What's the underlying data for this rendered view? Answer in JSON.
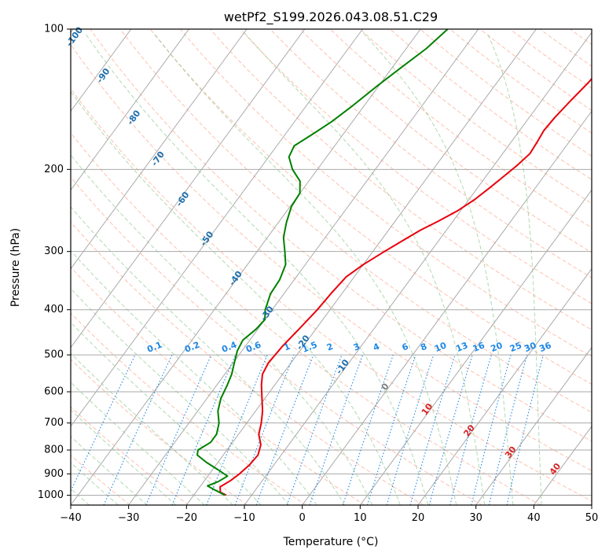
{
  "chart_data": {
    "type": "line",
    "subtype": "skew-T log-P diagram",
    "title": "wetPf2_S199.2026.043.08.51.C29",
    "xlabel": "Temperature (°C)",
    "ylabel": "Pressure (hPa)",
    "xlim": [
      -40,
      50
    ],
    "ylim": [
      1050,
      100
    ],
    "x_ticks": [
      -40,
      -30,
      -20,
      -10,
      0,
      10,
      20,
      30,
      40,
      50
    ],
    "x_tick_labels": [
      "−40",
      "−30",
      "−20",
      "−10",
      "0",
      "10",
      "20",
      "30",
      "40",
      "50"
    ],
    "y_ticks": [
      1000,
      900,
      800,
      700,
      600,
      500,
      400,
      300,
      200,
      100
    ],
    "y_tick_labels": [
      "1000",
      "900",
      "800",
      "700",
      "600",
      "500",
      "400",
      "300",
      "200",
      "100"
    ],
    "colors": {
      "temperature": "#e8000b",
      "dewpoint": "#008000",
      "isotherm": "#aaaaaa",
      "dry_adiabat": "#ff8c69",
      "moist_adiabat": "#7cbf7c",
      "mixing_ratio": "#1e88e5",
      "upper_isotherm_labels": "#1f6fad",
      "lower_isotherm_labels": "#d62728",
      "zero_label": "#808080"
    },
    "series": [
      {
        "name": "Temperature",
        "points": [
          [
            -14.4,
            1000
          ],
          [
            -15.8,
            985
          ],
          [
            -16.5,
            960
          ],
          [
            -15.5,
            930
          ],
          [
            -14.8,
            900
          ],
          [
            -14.2,
            860
          ],
          [
            -14.0,
            820
          ],
          [
            -14.8,
            780
          ],
          [
            -16.5,
            740
          ],
          [
            -17.5,
            700
          ],
          [
            -18.8,
            660
          ],
          [
            -20.5,
            620
          ],
          [
            -22.3,
            580
          ],
          [
            -23.5,
            550
          ],
          [
            -23.9,
            520
          ],
          [
            -23.6,
            480
          ],
          [
            -22.9,
            440
          ],
          [
            -22.2,
            400
          ],
          [
            -21.9,
            370
          ],
          [
            -21.4,
            340
          ],
          [
            -20.0,
            320
          ],
          [
            -18.0,
            300
          ],
          [
            -16.3,
            285
          ],
          [
            -14.5,
            270
          ],
          [
            -12.5,
            258
          ],
          [
            -10.5,
            245
          ],
          [
            -9.0,
            232
          ],
          [
            -8.0,
            220
          ],
          [
            -7.0,
            208
          ],
          [
            -6.0,
            196
          ],
          [
            -5.3,
            185
          ],
          [
            -5.5,
            175
          ],
          [
            -5.8,
            165
          ],
          [
            -5.6,
            155
          ],
          [
            -5.0,
            143
          ],
          [
            -4.2,
            130
          ],
          [
            -3.8,
            118
          ],
          [
            -3.3,
            108
          ],
          [
            -2.7,
            100
          ]
        ]
      },
      {
        "name": "Dewpoint",
        "points": [
          [
            -14.6,
            1000
          ],
          [
            -17.0,
            975
          ],
          [
            -18.8,
            955
          ],
          [
            -17.5,
            935
          ],
          [
            -16.6,
            910
          ],
          [
            -19.2,
            880
          ],
          [
            -22.0,
            850
          ],
          [
            -24.5,
            820
          ],
          [
            -25.0,
            800
          ],
          [
            -23.8,
            770
          ],
          [
            -23.8,
            740
          ],
          [
            -24.8,
            700
          ],
          [
            -26.5,
            660
          ],
          [
            -27.6,
            620
          ],
          [
            -28.2,
            580
          ],
          [
            -28.8,
            550
          ],
          [
            -29.8,
            520
          ],
          [
            -30.8,
            490
          ],
          [
            -31.2,
            465
          ],
          [
            -30.3,
            440
          ],
          [
            -30.0,
            420
          ],
          [
            -31.2,
            400
          ],
          [
            -32.3,
            370
          ],
          [
            -32.5,
            345
          ],
          [
            -33.4,
            320
          ],
          [
            -35.2,
            300
          ],
          [
            -37.2,
            280
          ],
          [
            -38.6,
            260
          ],
          [
            -39.8,
            240
          ],
          [
            -40.0,
            225
          ],
          [
            -41.5,
            212
          ],
          [
            -44.3,
            200
          ],
          [
            -46.5,
            188
          ],
          [
            -47.0,
            178
          ],
          [
            -45.3,
            168
          ],
          [
            -43.6,
            158
          ],
          [
            -42.0,
            146
          ],
          [
            -40.2,
            132
          ],
          [
            -38.3,
            120
          ],
          [
            -36.5,
            110
          ],
          [
            -35.3,
            100
          ]
        ]
      }
    ],
    "upper_isotherm_labels": [
      {
        "label": "-100",
        "x": -98.7,
        "p": 104
      },
      {
        "label": "-90",
        "x": -88.8,
        "p": 126
      },
      {
        "label": "-80",
        "x": -78.2,
        "p": 155
      },
      {
        "label": "-70",
        "x": -68.8,
        "p": 190
      },
      {
        "label": "-60",
        "x": -59.4,
        "p": 232
      },
      {
        "label": "-50",
        "x": -50.2,
        "p": 282
      },
      {
        "label": "-40",
        "x": -40.2,
        "p": 343
      },
      {
        "label": "-30",
        "x": -30.3,
        "p": 408
      },
      {
        "label": "-20",
        "x": -20.4,
        "p": 471
      },
      {
        "label": "-10",
        "x": -10.5,
        "p": 531
      }
    ],
    "zero_label": {
      "label": "0",
      "x": -0.6,
      "p": 586
    },
    "lower_isotherm_labels": [
      {
        "label": "10",
        "x": 9.5,
        "p": 655
      },
      {
        "label": "20",
        "x": 19.5,
        "p": 728
      },
      {
        "label": "30",
        "x": 29.4,
        "p": 810
      },
      {
        "label": "40",
        "x": 39.2,
        "p": 880
      }
    ],
    "mixing_ratio_values": [
      0.1,
      0.2,
      0.4,
      0.6,
      1,
      1.5,
      2,
      3,
      4,
      6,
      8,
      10,
      13,
      16,
      20,
      25,
      30,
      36
    ],
    "mixing_ratio_labels": [
      {
        "label": "0.1",
        "t": -45.5
      },
      {
        "label": "0.2",
        "t": -39.0
      },
      {
        "label": "0.4",
        "t": -32.6
      },
      {
        "label": "0.6",
        "t": -28.4
      },
      {
        "label": "1",
        "t": -22.6
      },
      {
        "label": "1.5",
        "t": -18.7
      },
      {
        "label": "2",
        "t": -15.2
      },
      {
        "label": "3",
        "t": -10.6
      },
      {
        "label": "4",
        "t": -7.2
      },
      {
        "label": "6",
        "t": -2.2
      },
      {
        "label": "8",
        "t": 1.0
      },
      {
        "label": "10",
        "t": 3.9
      },
      {
        "label": "13",
        "t": 7.6
      },
      {
        "label": "16",
        "t": 10.5
      },
      {
        "label": "20",
        "t": 13.6
      },
      {
        "label": "25",
        "t": 16.9
      },
      {
        "label": "30",
        "t": 19.4
      },
      {
        "label": "36",
        "t": 22.0
      }
    ]
  }
}
